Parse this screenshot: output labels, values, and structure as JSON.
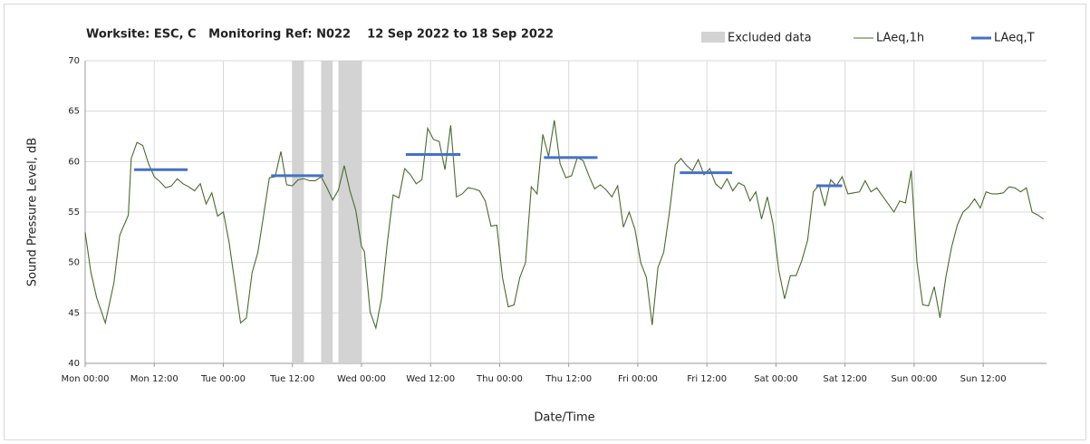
{
  "chart_data": {
    "type": "line",
    "title": "Worksite: ESC, C   Monitoring Ref: N022    12 Sep 2022 to 18 Sep 2022",
    "x_label": "Date/Time",
    "y_label": "Sound Pressure Level, dB",
    "xlim": [
      0,
      167
    ],
    "xticks": [
      {
        "value": 0,
        "label": "Mon 00:00"
      },
      {
        "value": 12,
        "label": "Mon 12:00"
      },
      {
        "value": 24,
        "label": "Tue 00:00"
      },
      {
        "value": 36,
        "label": "Tue 12:00"
      },
      {
        "value": 48,
        "label": "Wed 00:00"
      },
      {
        "value": 60,
        "label": "Wed 12:00"
      },
      {
        "value": 72,
        "label": "Thu 00:00"
      },
      {
        "value": 84,
        "label": "Thu 12:00"
      },
      {
        "value": 96,
        "label": "Fri 00:00"
      },
      {
        "value": 108,
        "label": "Fri 12:00"
      },
      {
        "value": 120,
        "label": "Sat 00:00"
      },
      {
        "value": 132,
        "label": "Sat 12:00"
      },
      {
        "value": 144,
        "label": "Sun 00:00"
      },
      {
        "value": 156,
        "label": "Sun 12:00"
      }
    ],
    "ylim": [
      40,
      70
    ],
    "yticks": [
      40,
      45,
      50,
      55,
      60,
      65,
      70
    ],
    "grid": true,
    "excluded": {
      "name": "Excluded data",
      "color": "#d3d3d3",
      "ranges": [
        [
          36,
          38
        ],
        [
          41,
          43
        ],
        [
          44,
          48
        ]
      ]
    },
    "series": [
      {
        "name": "LAeq,1h",
        "color": "#4a6b2e",
        "x": [
          0,
          1,
          2,
          3.5,
          5,
          6,
          7.5,
          8,
          9,
          10,
          11,
          12,
          13,
          14,
          15,
          16,
          17,
          18,
          19,
          20,
          21,
          22,
          23,
          24,
          25,
          26,
          27,
          28,
          29,
          30,
          31,
          32,
          33,
          34,
          35,
          36,
          37,
          38,
          39,
          40,
          41,
          42,
          43,
          44,
          45,
          46,
          47,
          48,
          48.5,
          49.5,
          50.5,
          51.5,
          52.5,
          53.5,
          54.5,
          55.5,
          56.5,
          57.5,
          58.5,
          59.5,
          60.5,
          61.5,
          62.5,
          63.5,
          64.5,
          65.5,
          66.5,
          67.5,
          68.5,
          69.5,
          70.5,
          71.5,
          72.5,
          73.5,
          74.5,
          75.5,
          76.5,
          77.5,
          78.5,
          79.5,
          80.5,
          81.5,
          82.5,
          83.5,
          84.5,
          85.5,
          86.5,
          87.5,
          88.5,
          89.5,
          90.5,
          91.5,
          92.5,
          93.5,
          94.5,
          95.5,
          96.5,
          97.5,
          98.5,
          99.5,
          100.5,
          101.5,
          102.5,
          103.5,
          104.5,
          105.5,
          106.5,
          107.5,
          108.5,
          109.5,
          110.5,
          111.5,
          112.5,
          113.5,
          114.5,
          115.5,
          116.5,
          117.5,
          118.5,
          119.5,
          120.5,
          121.5,
          122.5,
          123.5,
          124.5,
          125.5,
          126.5,
          127.5,
          128.5,
          129.5,
          130.5,
          131.5,
          132.5,
          133.5,
          134.5,
          135.5,
          136.5,
          137.5,
          138.5,
          139.5,
          140.5,
          141.5,
          142.5,
          143.5,
          144.5,
          145.5,
          146.5,
          147.5,
          148.5,
          149.5,
          150.5,
          151.5,
          152.5,
          153.5,
          154.5,
          155.5,
          156.5,
          157.5,
          158.5,
          159.5,
          160.5,
          161.5,
          162.5,
          163.5,
          164.5,
          165.5,
          166.5
        ],
        "values": [
          53,
          49,
          46.5,
          44,
          48,
          52.7,
          54.7,
          60.3,
          61.9,
          61.6,
          59.8,
          58.5,
          58,
          57.4,
          57.6,
          58.3,
          57.8,
          57.5,
          57.1,
          57.8,
          55.8,
          56.9,
          54.6,
          55,
          52,
          48,
          44,
          44.5,
          49,
          51,
          54.7,
          58.4,
          58.5,
          61,
          57.7,
          57.6,
          58.2,
          58.3,
          58.1,
          58.1,
          58.5,
          57.4,
          56.2,
          57.2,
          59.6,
          57.1,
          55.2,
          51.6,
          51.1,
          45.1,
          43.5,
          46.5,
          52,
          56.7,
          56.4,
          59.3,
          58.7,
          57.8,
          58.2,
          63.3,
          62.2,
          62,
          59.2,
          63.6,
          56.5,
          56.8,
          57.4,
          57.3,
          57.1,
          56.1,
          53.6,
          53.7,
          48.5,
          45.6,
          45.8,
          48.5,
          50,
          57.5,
          56.8,
          62.7,
          60.5,
          64.1,
          59.8,
          58.4,
          58.6,
          60.4,
          60.1,
          58.6,
          57.3,
          57.7,
          57.2,
          56.5,
          57.6,
          53.5,
          55,
          53.3,
          50,
          48.5,
          43.8,
          49.5,
          51,
          55,
          59.7,
          60.3,
          59.6,
          59.1,
          60.2,
          58.7,
          59.3,
          57.8,
          57.3,
          58.3,
          57.1,
          57.9,
          57.6,
          56.1,
          57,
          54.3,
          56.5,
          53.8,
          49.2,
          46.4,
          48.7,
          48.7,
          50.2,
          52.2,
          57,
          57.7,
          55.6,
          58.2,
          57.6,
          58.5,
          56.8,
          56.9,
          57,
          58.1,
          57,
          57.4,
          56.6,
          55.8,
          55,
          56.1,
          55.9,
          59.1,
          50,
          45.8,
          45.7,
          47.6,
          44.5,
          48.5,
          51.5,
          53.7,
          55,
          55.5,
          56.3,
          55.4,
          57,
          56.8,
          56.8,
          56.9,
          57.5,
          57.4,
          57,
          57.4,
          55,
          54.7,
          54.3
        ]
      },
      {
        "name": "LAeq,T",
        "color": "#4472c4",
        "segments": [
          {
            "x": [
              8.5,
              17.8
            ],
            "value": 59.2
          },
          {
            "x": [
              32.3,
              41.4
            ],
            "value": 58.6
          },
          {
            "x": [
              55.7,
              65.2
            ],
            "value": 60.7
          },
          {
            "x": [
              79.7,
              89
            ],
            "value": 60.4
          },
          {
            "x": [
              103.3,
              112.4
            ],
            "value": 58.9
          },
          {
            "x": [
              127,
              131.5
            ],
            "value": 57.6
          }
        ]
      }
    ]
  }
}
